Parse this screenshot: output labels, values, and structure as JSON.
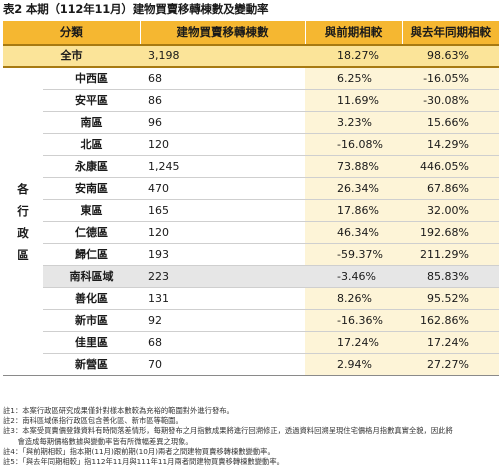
{
  "title": "表2 本期（112年11月）建物買賣移轉棟數及變動率",
  "headers": {
    "category": "分類",
    "transfers": "建物買賣移轉棟數",
    "vs_prev": "與前期相較",
    "vs_last_year": "與去年同期相較"
  },
  "total": {
    "name": "全市",
    "count": "3,198",
    "prev": "18.27%",
    "yoy": "98.63%"
  },
  "side_label": "各行政區",
  "districts": [
    {
      "name": "中西區",
      "count": "68",
      "prev": "6.25%",
      "yoy": "-16.05%"
    },
    {
      "name": "安平區",
      "count": "86",
      "prev": "11.69%",
      "yoy": "-30.08%"
    },
    {
      "name": "南區",
      "count": "96",
      "prev": "3.23%",
      "yoy": "15.66%"
    },
    {
      "name": "北區",
      "count": "120",
      "prev": "-16.08%",
      "yoy": "14.29%"
    },
    {
      "name": "永康區",
      "count": "1,245",
      "prev": "73.88%",
      "yoy": "446.05%"
    },
    {
      "name": "安南區",
      "count": "470",
      "prev": "26.34%",
      "yoy": "67.86%"
    },
    {
      "name": "東區",
      "count": "165",
      "prev": "17.86%",
      "yoy": "32.00%"
    },
    {
      "name": "仁德區",
      "count": "120",
      "prev": "46.34%",
      "yoy": "192.68%"
    },
    {
      "name": "歸仁區",
      "count": "193",
      "prev": "-59.37%",
      "yoy": "211.29%"
    }
  ],
  "special": {
    "name": "南科區域",
    "count": "223",
    "prev": "-3.46%",
    "yoy": "85.83%"
  },
  "sub_districts": [
    {
      "name": "善化區",
      "count": "131",
      "prev": "8.26%",
      "yoy": "95.52%"
    },
    {
      "name": "新市區",
      "count": "92",
      "prev": "-16.36%",
      "yoy": "162.86%"
    },
    {
      "name": "佳里區",
      "count": "68",
      "prev": "17.24%",
      "yoy": "17.24%"
    },
    {
      "name": "新營區",
      "count": "70",
      "prev": "2.94%",
      "yoy": "27.27%"
    }
  ],
  "notes": [
    "註1：本案行政區研究成果僅針對樣本數較為充裕的範圍對外進行發布。",
    "註2：南科區域係指行政區包含善化區、新市區等範圍。",
    "註3：本案受買賣價登錄資料有時間落差情形，每期發布之月指數成果將進行回溯修正，透過資料回溯呈現住宅價格月指數真實全貌，因此將",
    "　　會造成每期價格數據與變動率皆有所微幅差異之現象。",
    "註4：「與前期相較」指本期(11月)跟前期(10月)兩者之間建物買賣移轉棟數變動率。",
    "註5：「與去年同期相較」指112年11月與111年11月兩者間建物買賣移轉棟數變動率。"
  ]
}
